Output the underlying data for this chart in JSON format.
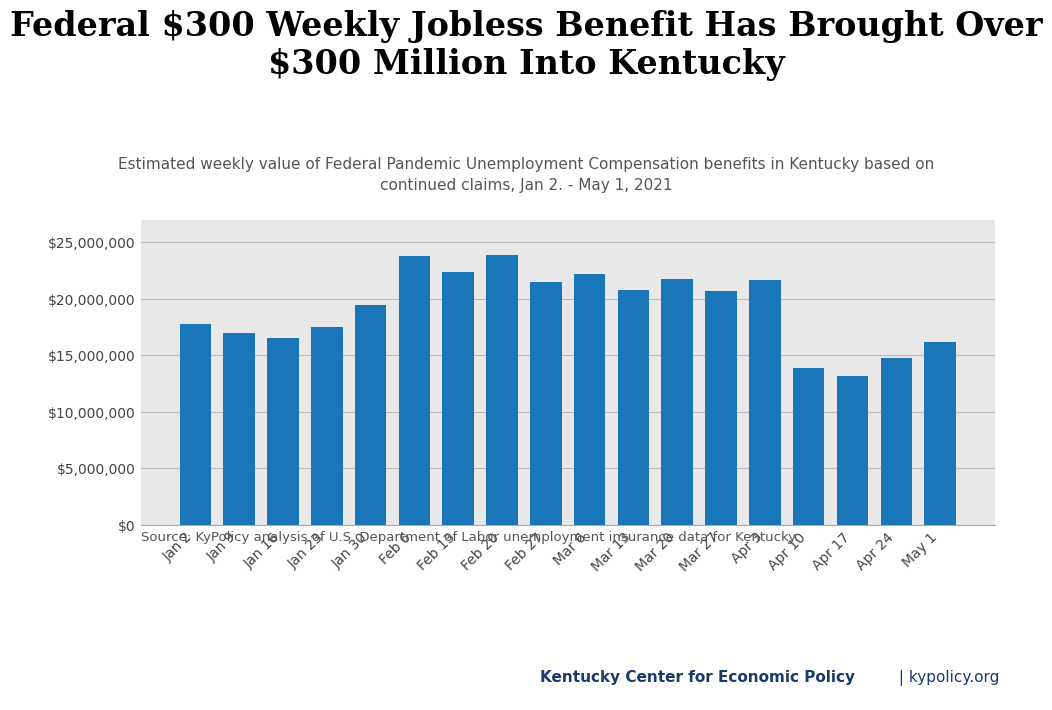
{
  "title": "Federal $300 Weekly Jobless Benefit Has Brought Over\n$300 Million Into Kentucky",
  "subtitle": "Estimated weekly value of Federal Pandemic Unemployment Compensation benefits in Kentucky based on\ncontinued claims, Jan 2. - May 1, 2021",
  "categories": [
    "Jan 2",
    "Jan 9",
    "Jan 16",
    "Jan 23",
    "Jan 30",
    "Feb 6",
    "Feb 13",
    "Feb 20",
    "Feb 27",
    "Mar 6",
    "Mar 13",
    "Mar 20",
    "Mar 27",
    "Apr 3",
    "Apr 10",
    "Apr 17",
    "Apr 24",
    "May 1"
  ],
  "values": [
    17800000,
    17000000,
    16500000,
    17500000,
    19500000,
    23800000,
    22400000,
    23900000,
    21500000,
    22200000,
    20800000,
    21800000,
    20700000,
    21700000,
    13900000,
    13200000,
    14800000,
    16200000
  ],
  "ylim": [
    0,
    27000000
  ],
  "yticks": [
    0,
    5000000,
    10000000,
    15000000,
    20000000,
    25000000
  ],
  "source_text": "Source: KyPolicy analysis of U.S. Department of Labor unemployment insurance data for Kentucky.",
  "footer_bold": "Kentucky Center for Economic Policy",
  "footer_regular": " | kypolicy.org",
  "footer_color": "#1a3a6b",
  "top_bg_color": "#ffffff",
  "plot_bg_color": "#e8e8e8",
  "bar_color": "#1976b8",
  "footer_bg_color": "#c8c8c8",
  "title_fontsize": 24,
  "subtitle_fontsize": 11,
  "tick_fontsize": 10,
  "source_fontsize": 9.5,
  "footer_fontsize": 11
}
